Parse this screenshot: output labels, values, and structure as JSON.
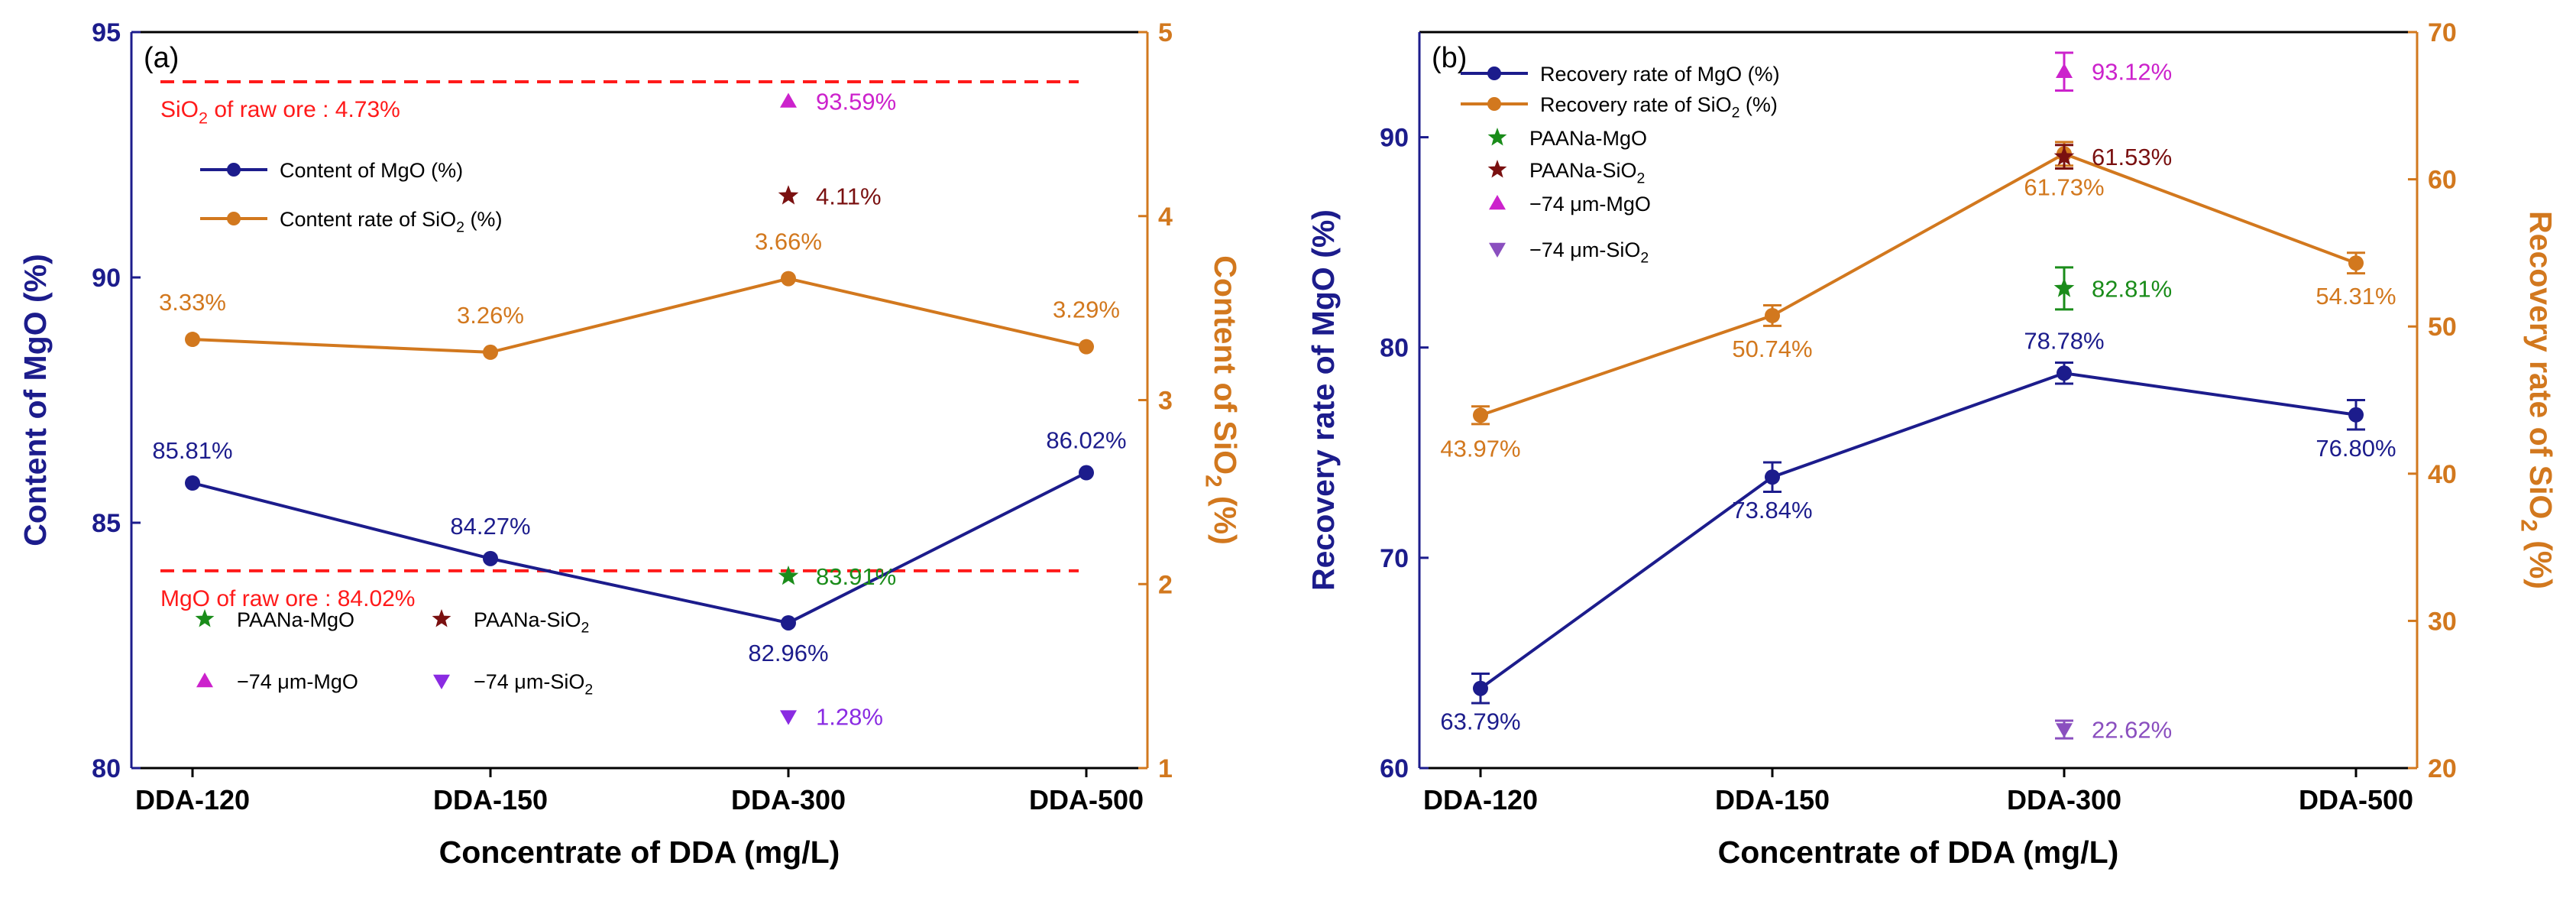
{
  "colors": {
    "mgo": "#1c1c8c",
    "sio2": "#d2781e",
    "raw_line": "#ff1a1a",
    "paana_mgo": "#1a8c1a",
    "paana_sio2": "#7a1010",
    "fine_mgo": "#cc22cc",
    "fine_sio2_a": "#8a2be2",
    "fine_sio2_b": "#8a4fbf",
    "axis": "#000000"
  },
  "chart_data": [
    {
      "panel": "(a)",
      "type": "line",
      "categories": [
        "DDA-120",
        "DDA-150",
        "DDA-300",
        "DDA-500"
      ],
      "xlabel": "Concentrate of DDA (mg/L)",
      "ylabel_left": "Content of MgO (%)",
      "ylabel_right_main": "Content of SiO",
      "ylabel_right_sub": "2",
      "ylabel_right_tail": " (%)",
      "ylim_left": [
        80,
        95
      ],
      "yticks_left": [
        80,
        85,
        90,
        95
      ],
      "ylim_right": [
        1,
        5
      ],
      "yticks_right": [
        1,
        2,
        3,
        4,
        5
      ],
      "series": [
        {
          "name": "Content of MgO (%)",
          "axis": "left",
          "values": [
            85.81,
            84.27,
            82.96,
            86.02
          ],
          "labels": [
            "85.81%",
            "84.27%",
            "82.96%",
            "86.02%"
          ]
        },
        {
          "name": "Content rate of SiO2 (%)",
          "legend_main": "Content rate of SiO",
          "legend_sub": "2",
          "legend_tail": " (%)",
          "axis": "right",
          "values": [
            3.33,
            3.26,
            3.66,
            3.29
          ],
          "labels": [
            "3.33%",
            "3.26%",
            "3.66%",
            "3.29%"
          ]
        }
      ],
      "reference_lines": [
        {
          "axis": "right",
          "value": 4.73,
          "label_main": "SiO",
          "label_sub": "2",
          "label_tail": " of raw ore : 4.73%"
        },
        {
          "axis": "left",
          "value": 84.02,
          "label": "MgO of raw ore : 84.02%"
        }
      ],
      "markers": [
        {
          "name": "PAANa-MgO",
          "axis": "left",
          "category": "DDA-300",
          "value": 83.91,
          "label": "83.91%"
        },
        {
          "name": "PAANa-SiO2",
          "axis": "right",
          "category": "DDA-300",
          "value": 4.11,
          "label": "4.11%"
        },
        {
          "name": "-74 um-MgO",
          "axis": "left",
          "category": "DDA-300",
          "value": 93.59,
          "label": "93.59%"
        },
        {
          "name": "-74 um-SiO2",
          "axis": "right",
          "category": "DDA-300",
          "value": 1.28,
          "label": "1.28%"
        }
      ],
      "legend_markers": [
        {
          "text": "PAANa-MgO",
          "sub": ""
        },
        {
          "text": "PAANa-SiO",
          "sub": "2"
        },
        {
          "text": "−74 μm-MgO",
          "sub": ""
        },
        {
          "text": "−74 μm-SiO",
          "sub": "2"
        }
      ]
    },
    {
      "panel": "(b)",
      "type": "line",
      "categories": [
        "DDA-120",
        "DDA-150",
        "DDA-300",
        "DDA-500"
      ],
      "xlabel": "Concentrate of DDA (mg/L)",
      "ylabel_left": "Recovery rate of MgO (%)",
      "ylabel_right_main": "Recovery rate of SiO",
      "ylabel_right_sub": "2",
      "ylabel_right_tail": " (%)",
      "ylim_left": [
        60,
        95
      ],
      "yticks_left": [
        60,
        70,
        80,
        90
      ],
      "ylim_right": [
        20,
        70
      ],
      "yticks_right": [
        20,
        30,
        40,
        50,
        60,
        70
      ],
      "series": [
        {
          "name": "Recovery rate of MgO (%)",
          "axis": "left",
          "values": [
            63.79,
            73.84,
            78.78,
            76.8
          ],
          "errors": [
            0.7,
            0.7,
            0.5,
            0.7
          ],
          "labels": [
            "63.79%",
            "73.84%",
            "78.78%",
            "76.80%"
          ]
        },
        {
          "name": "Recovery rate of SiO2 (%)",
          "legend_main": "Recovery rate of SiO",
          "legend_sub": "2",
          "legend_tail": " (%)",
          "axis": "right",
          "values": [
            43.97,
            50.74,
            61.73,
            54.31
          ],
          "errors": [
            0.6,
            0.7,
            0.8,
            0.7
          ],
          "labels": [
            "43.97%",
            "50.74%",
            "61.73%",
            "54.31%"
          ]
        }
      ],
      "markers": [
        {
          "name": "PAANa-MgO",
          "axis": "left",
          "category": "DDA-300",
          "value": 82.81,
          "error": 1.0,
          "label": "82.81%"
        },
        {
          "name": "PAANa-SiO2",
          "axis": "right",
          "category": "DDA-300",
          "value": 61.53,
          "error": 0.8,
          "label": "61.53%"
        },
        {
          "name": "-74 um-MgO",
          "axis": "left",
          "category": "DDA-300",
          "value": 93.12,
          "error": 0.9,
          "label": "93.12%"
        },
        {
          "name": "-74 um-SiO2",
          "axis": "right",
          "category": "DDA-300",
          "value": 22.62,
          "error": 0.6,
          "label": "22.62%"
        }
      ],
      "legend_markers": [
        {
          "text": "PAANa-MgO",
          "sub": ""
        },
        {
          "text": "PAANa-SiO",
          "sub": "2"
        },
        {
          "text": "−74 μm-MgO",
          "sub": ""
        },
        {
          "text": "−74 μm-SiO",
          "sub": "2"
        }
      ]
    }
  ]
}
